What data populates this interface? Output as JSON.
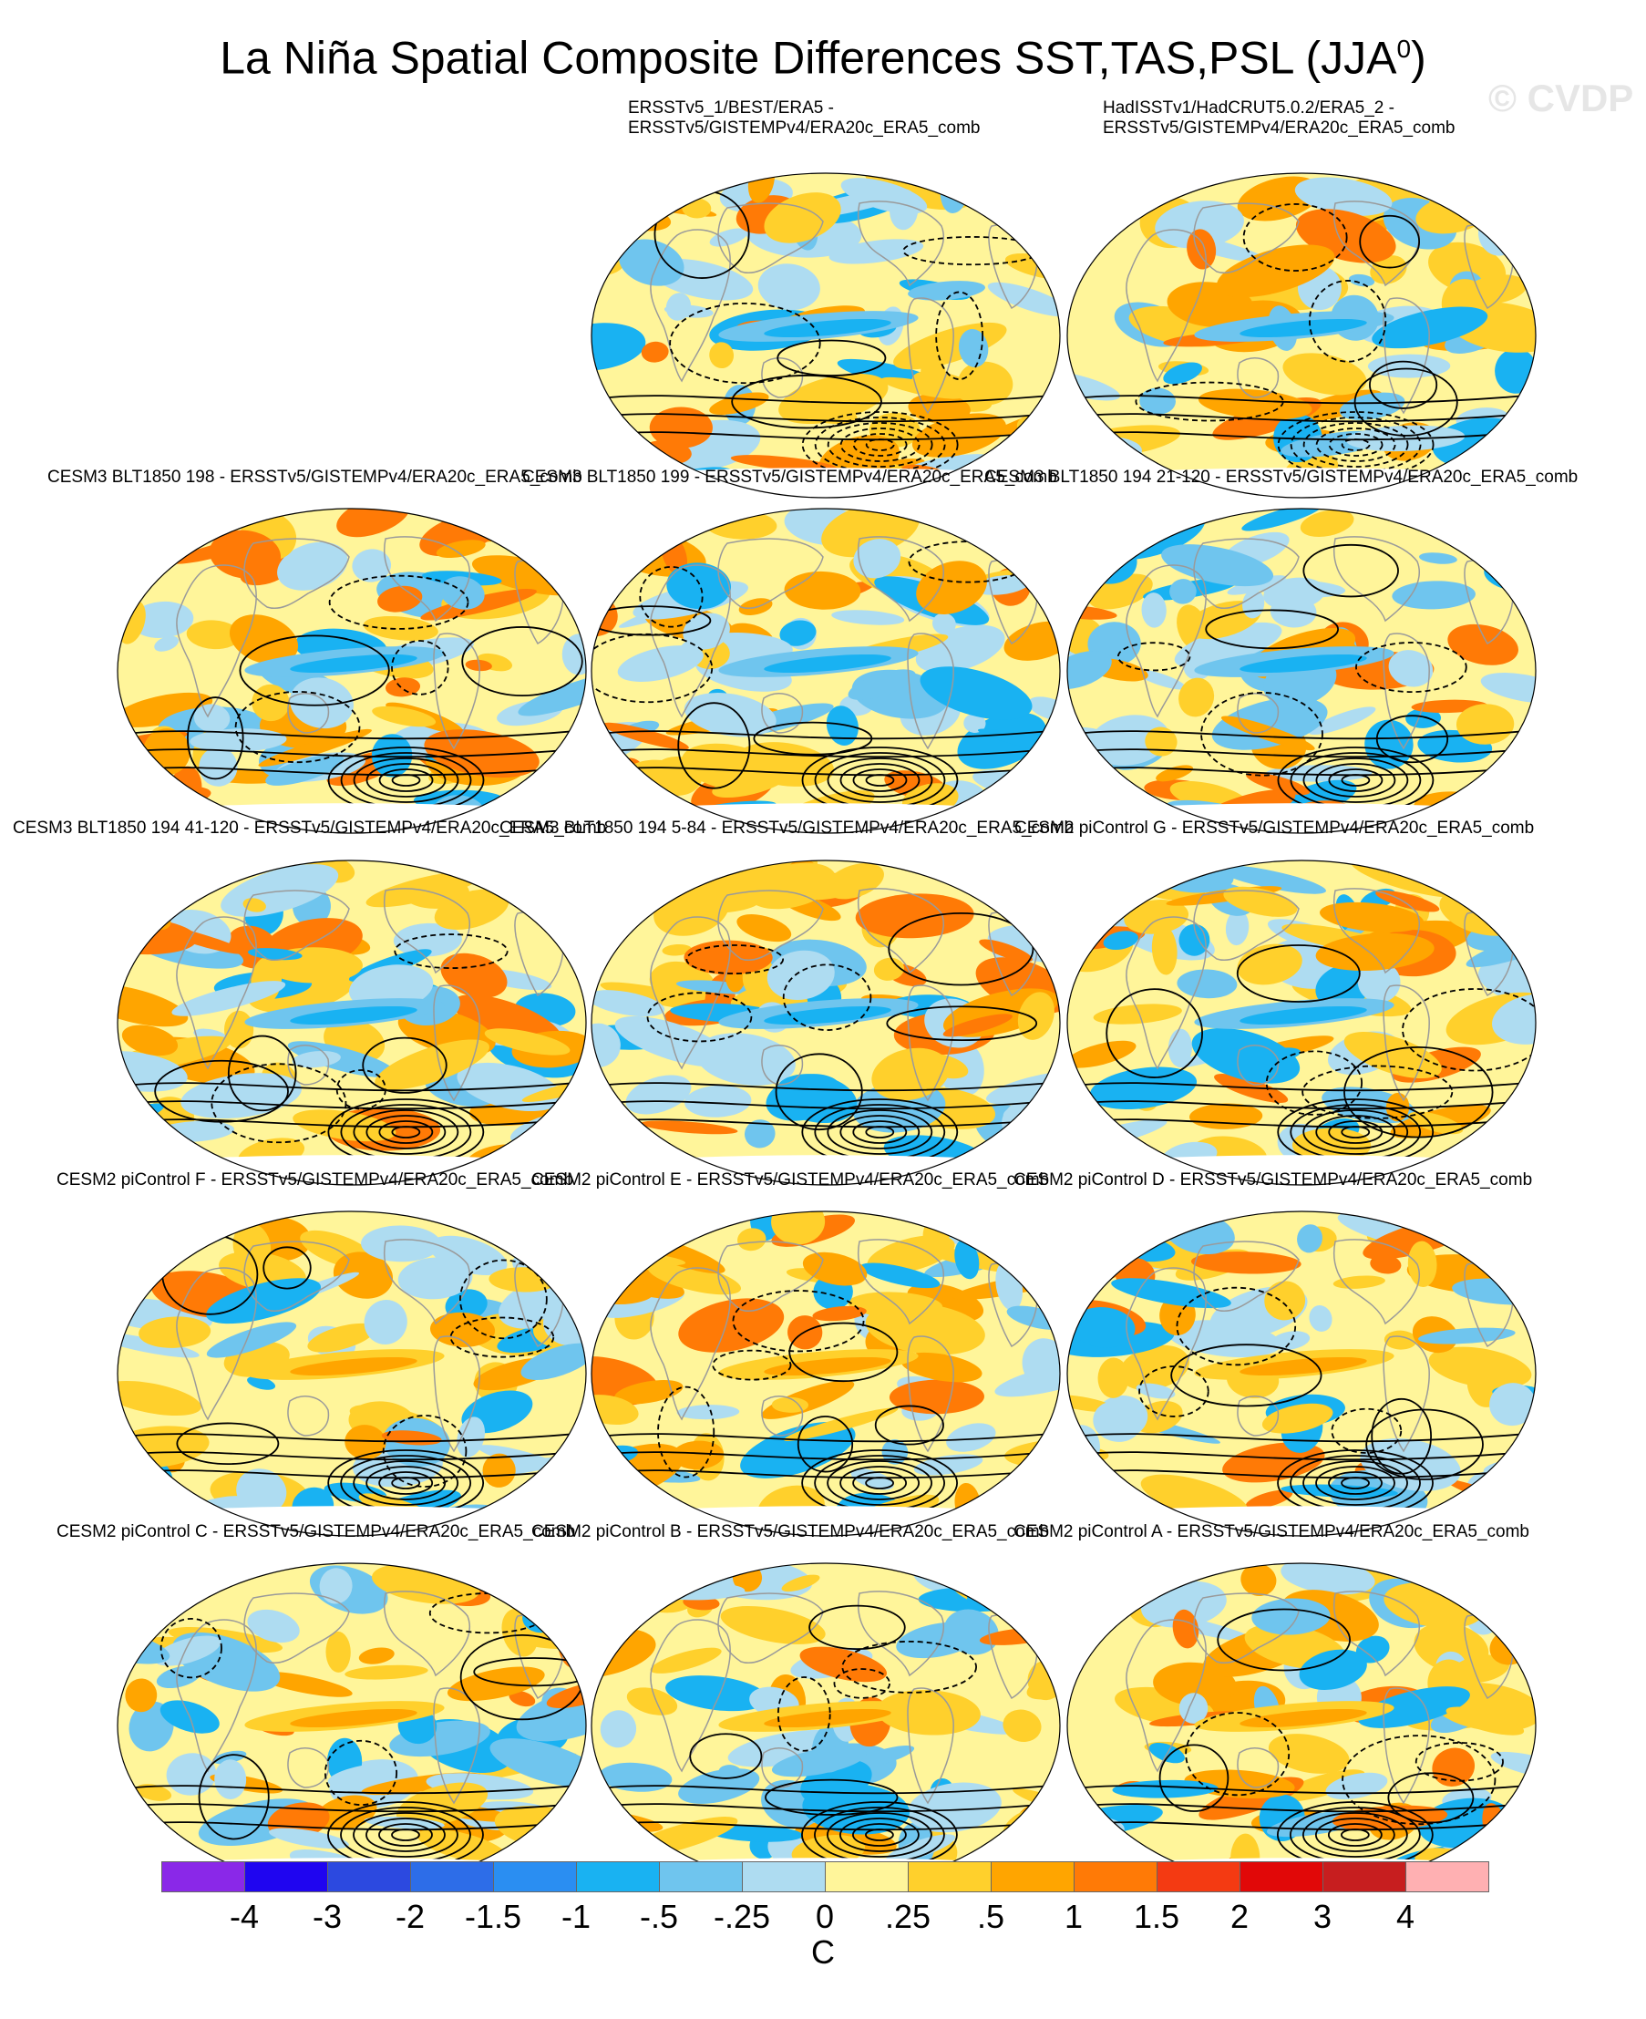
{
  "figure": {
    "title": "La Niña Spatial Composite Differences SST,TAS,PSL (JJA",
    "title_superscript": "0",
    "title_close": ")",
    "watermark": "© CVDP"
  },
  "panels": [
    {
      "label": "ERSSTv5_1/BEST/ERA5 -",
      "label2": "ERSSTv5/GISTEMPv4/ERA20c_ERA5_comb"
    },
    {
      "label": "HadISSTv1/HadCRUT5.0.2/ERA5_2 -",
      "label2": "ERSSTv5/GISTEMPv4/ERA20c_ERA5_comb"
    },
    {
      "label": "CESM3 BLT1850 198 - ERSSTv5/GISTEMPv4/ERA20c_ERA5_comb"
    },
    {
      "label": "CESM3 BLT1850 199 - ERSSTv5/GISTEMPv4/ERA20c_ERA5_comb"
    },
    {
      "label": "CESM3 BLT1850 194 21-120 - ERSSTv5/GISTEMPv4/ERA20c_ERA5_comb"
    },
    {
      "label": "CESM3 BLT1850 194 41-120 - ERSSTv5/GISTEMPv4/ERA20c_ERA5_comb"
    },
    {
      "label": "CESM3 BLT1850 194 5-84 - ERSSTv5/GISTEMPv4/ERA20c_ERA5_comb"
    },
    {
      "label": "CESM2 piControl G - ERSSTv5/GISTEMPv4/ERA20c_ERA5_comb"
    },
    {
      "label": "CESM2 piControl F - ERSSTv5/GISTEMPv4/ERA20c_ERA5_comb"
    },
    {
      "label": "CESM2 piControl E - ERSSTv5/GISTEMPv4/ERA20c_ERA5_comb"
    },
    {
      "label": "CESM2 piControl D - ERSSTv5/GISTEMPv4/ERA20c_ERA5_comb"
    },
    {
      "label": "CESM2 piControl C - ERSSTv5/GISTEMPv4/ERA20c_ERA5_comb"
    },
    {
      "label": "CESM2 piControl B - ERSSTv5/GISTEMPv4/ERA20c_ERA5_comb"
    },
    {
      "label": "CESM2 piControl A - ERSSTv5/GISTEMPv4/ERA20c_ERA5_comb"
    }
  ],
  "colorbar": {
    "unit": "C",
    "tick_labels": [
      "-4",
      "-3",
      "-2",
      "-1.5",
      "-1",
      "-.5",
      "-.25",
      "0",
      ".25",
      ".5",
      "1",
      "1.5",
      "2",
      "3",
      "4"
    ],
    "colors": [
      "#8a28e8",
      "#1f05f0",
      "#2c49e0",
      "#2d6de8",
      "#2a8ef2",
      "#19b2f2",
      "#6fc5ee",
      "#aedcf1",
      "#fff59a",
      "#ffd02c",
      "#ffa500",
      "#ff7a06",
      "#f43a12",
      "#e10808",
      "#c71e1f",
      "#ffb0b2"
    ]
  }
}
